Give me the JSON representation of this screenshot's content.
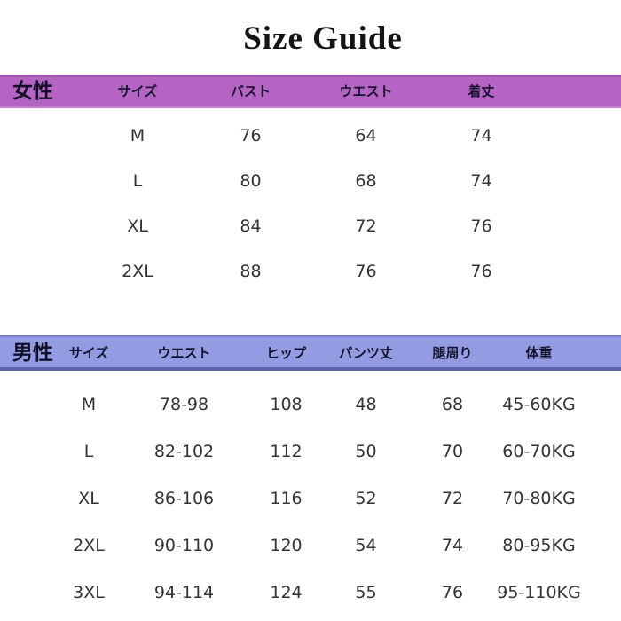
{
  "title": "Size Guide",
  "colors": {
    "women_header_bg": "#b564c4",
    "men_header_bg": "#939ce2",
    "title_color": "#141414",
    "data_text": "#333333"
  },
  "women": {
    "section_label": "女性",
    "columns": [
      "サイズ",
      "バスト",
      "ウエスト",
      "着丈"
    ],
    "rows": [
      {
        "size": "M",
        "bust": "76",
        "waist": "64",
        "length": "74"
      },
      {
        "size": "L",
        "bust": "80",
        "waist": "68",
        "length": "74"
      },
      {
        "size": "XL",
        "bust": "84",
        "waist": "72",
        "length": "76"
      },
      {
        "size": "2XL",
        "bust": "88",
        "waist": "76",
        "length": "76"
      }
    ]
  },
  "men": {
    "section_label": "男性",
    "columns": [
      "サイズ",
      "ウエスト",
      "ヒップ",
      "パンツ丈",
      "腿周り",
      "体重"
    ],
    "rows": [
      {
        "size": "M",
        "waist": "78-98",
        "hip": "108",
        "pants_length": "48",
        "thigh": "68",
        "weight": "45-60KG"
      },
      {
        "size": "L",
        "waist": "82-102",
        "hip": "112",
        "pants_length": "50",
        "thigh": "70",
        "weight": "60-70KG"
      },
      {
        "size": "XL",
        "waist": "86-106",
        "hip": "116",
        "pants_length": "52",
        "thigh": "72",
        "weight": "70-80KG"
      },
      {
        "size": "2XL",
        "waist": "90-110",
        "hip": "120",
        "pants_length": "54",
        "thigh": "74",
        "weight": "80-95KG"
      },
      {
        "size": "3XL",
        "waist": "94-114",
        "hip": "124",
        "pants_length": "55",
        "thigh": "76",
        "weight": "95-110KG"
      }
    ]
  }
}
